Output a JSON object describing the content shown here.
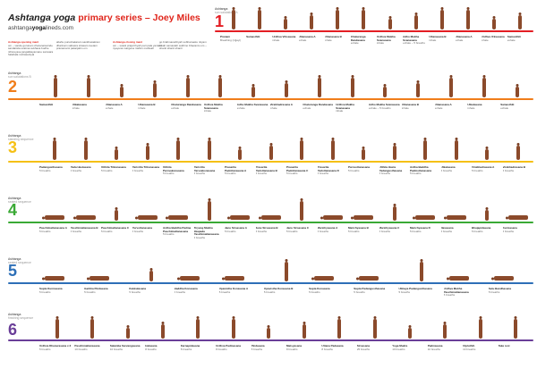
{
  "header": {
    "title": "Ashtanga yoga",
    "title_rest": "primary series – Joey Miles",
    "website_pre": "ashtanga",
    "website_bold": "yoga",
    "website_post": "lineds.com"
  },
  "intro": [
    {
      "h": "Ashtanga opening mant",
      "t": "om – vande gurunam charanaravinde sandarsita svatma sukhava bodhe nihsreyase jangalikayamane samsara halahala mohasantyai"
    },
    {
      "h": "",
      "t": "abahu purushakaram sankhacakrasi dharinam sahasra sirasam svetam pranamami patanjalim om"
    },
    {
      "h": "Ashtanga closing mant",
      "t": "om – svasti praja bhyah pari pala yantam nyayena margena mahim mahisah"
    },
    {
      "h": "",
      "t": "go brahmanebhyah subhamastu nityam lokah samastah sukhino bhavantu om – shanti shanti shanti"
    }
  ],
  "rows": [
    {
      "num": "1",
      "label": "Ashtanga",
      "sub": "sun salutations A",
      "color": "#e31e24",
      "captions": [
        {
          "n": "Pranam",
          "d": "Breathing (Ujjayi)"
        },
        {
          "n": "Samasthiti",
          "d": ""
        },
        {
          "n": "Urdhva Vrksasana",
          "d": "inhale"
        },
        {
          "n": "Uttanasana A",
          "d": "exhale"
        },
        {
          "n": "Uttanasana B",
          "d": "inhale"
        },
        {
          "n": "Chaturanga Dandasana",
          "d": "exhale"
        },
        {
          "n": "Urdhva Mukha Svanasana",
          "d": "inhale"
        },
        {
          "n": "Adho Mukha Svanasana",
          "d": "exhale – 5 breaths"
        },
        {
          "n": "Uttanasana B",
          "d": "inhale"
        },
        {
          "n": "Uttanasana A",
          "d": "exhale"
        },
        {
          "n": "Urdhva Vrksasana",
          "d": "inhale"
        },
        {
          "n": "Samasthiti",
          "d": "exhale"
        }
      ]
    },
    {
      "num": "2",
      "label": "Ashtanga",
      "sub": "sun salutations B",
      "color": "#f07d1a",
      "captions": [
        {
          "n": "Samasthiti",
          "d": ""
        },
        {
          "n": "Utkatasana",
          "d": "inhale"
        },
        {
          "n": "Uttanasana A",
          "d": "exhale"
        },
        {
          "n": "Uttanasana B",
          "d": "inhale"
        },
        {
          "n": "Chaturanga Dandasana",
          "d": "exhale"
        },
        {
          "n": "Urdhva Mukha Svanasana",
          "d": "inhale"
        },
        {
          "n": "Adho Mukha Svanasana",
          "d": "exhale"
        },
        {
          "n": "Virabhadrasana A",
          "d": "inhale"
        },
        {
          "n": "Chaturanga Dandasana",
          "d": "exhale"
        },
        {
          "n": "Urdhva Mukha Svanasana",
          "d": "inhale"
        },
        {
          "n": "Adho Mukha Svanasana",
          "d": "exhale – 5 breaths"
        },
        {
          "n": "Uttanasana B",
          "d": "inhale"
        },
        {
          "n": "Uttanasana A",
          "d": "exhale"
        },
        {
          "n": "Utkatasana",
          "d": "inhale"
        },
        {
          "n": "Samasthiti",
          "d": "exhale"
        }
      ]
    },
    {
      "num": "3",
      "label": "Ashtanga",
      "sub": "standing sequence",
      "color": "#f5c016",
      "captions": [
        {
          "n": "Padangusthasana",
          "d": "5 breaths"
        },
        {
          "n": "Pada Hastasana",
          "d": "5 breaths"
        },
        {
          "n": "Utthita Trikonasana",
          "d": "5 breaths"
        },
        {
          "n": "Parivrtta Trikonasana",
          "d": "5 breaths"
        },
        {
          "n": "Utthita Parsvakonasana",
          "d": "5 breaths"
        },
        {
          "n": "Parivrtta Parsvakonasana",
          "d": "5 breaths"
        },
        {
          "n": "Prasarita Padottanasana A",
          "d": "5 breaths"
        },
        {
          "n": "Prasarita Padottanasana B",
          "d": "5 breaths"
        },
        {
          "n": "Prasarita Padottanasana C",
          "d": "5 breaths"
        },
        {
          "n": "Prasarita Padottanasana D",
          "d": "5 breaths"
        },
        {
          "n": "Parsvottanasana",
          "d": "5 breaths"
        },
        {
          "n": "Utthita Hasta Padangusthasana",
          "d": "5 breaths"
        },
        {
          "n": "Ardha Baddha Padmottanasana",
          "d": "5 breaths"
        },
        {
          "n": "Utkatasana",
          "d": "5 breaths"
        },
        {
          "n": "Virabhadrasana A",
          "d": "5 breaths"
        },
        {
          "n": "Virabhadrasana B",
          "d": "5 breaths"
        }
      ]
    },
    {
      "num": "4",
      "label": "Ashtanga",
      "sub": "seated sequence",
      "color": "#3aa935",
      "captions": [
        {
          "n": "Paschimattanasana A",
          "d": "5 breaths"
        },
        {
          "n": "Paschimattanasana B",
          "d": "5 breaths"
        },
        {
          "n": "Paschimattanasana C",
          "d": "5 breaths"
        },
        {
          "n": "Purvottanasana",
          "d": "5 breaths"
        },
        {
          "n": "Ardha Baddha Padma Paschimattanasana",
          "d": "5 breaths"
        },
        {
          "n": "Tiryang Mukha Ekapada Paschimattanasana",
          "d": "5 breaths"
        },
        {
          "n": "Janu Sirsasana A",
          "d": "5 breaths"
        },
        {
          "n": "Janu Sirsasana B",
          "d": "5 breaths"
        },
        {
          "n": "Janu Sirsasana C",
          "d": "5 breaths"
        },
        {
          "n": "Marichyasana A",
          "d": "5 breaths"
        },
        {
          "n": "Marichyasana B",
          "d": "5 breaths"
        },
        {
          "n": "Marichyasana C",
          "d": "5 breaths"
        },
        {
          "n": "Marichyasana D",
          "d": "5 breaths"
        },
        {
          "n": "Navasana",
          "d": "5 breaths"
        },
        {
          "n": "Bhujapidasana",
          "d": "5 breaths"
        },
        {
          "n": "Kurmasana",
          "d": "5 breaths"
        }
      ]
    },
    {
      "num": "5",
      "label": "Ashtanga",
      "sub": "seated sequence",
      "color": "#2d6fb7",
      "captions": [
        {
          "n": "Supta Kurmasana",
          "d": "5 breaths"
        },
        {
          "n": "Garbha Pindasana",
          "d": "5 breaths"
        },
        {
          "n": "Kukkutasana",
          "d": "5 breaths"
        },
        {
          "n": "Baddha Konasana",
          "d": "5 breaths"
        },
        {
          "n": "Upavistha Konasana A",
          "d": "5 breaths"
        },
        {
          "n": "Upavistha Konasana B",
          "d": "5 breaths"
        },
        {
          "n": "Supta Konasana",
          "d": "5 breaths"
        },
        {
          "n": "Supta Padangusthasana",
          "d": "5 breaths"
        },
        {
          "n": "Ubhaya Padangusthasana",
          "d": "5 breaths"
        },
        {
          "n": "Urdhva Mukha Paschimattanasana",
          "d": "5 breaths"
        },
        {
          "n": "Setu Bandhasana",
          "d": "5 breaths"
        }
      ]
    },
    {
      "num": "6",
      "label": "Ashtanga",
      "sub": "finishing sequence",
      "color": "#6a3e98",
      "captions": [
        {
          "n": "Urdhva Dhanurasana x 3",
          "d": "5 breaths"
        },
        {
          "n": "Paschimattanasana",
          "d": "10 breaths"
        },
        {
          "n": "Salamba Sarvangasana",
          "d": "10 breaths"
        },
        {
          "n": "Halasana",
          "d": "8 breaths"
        },
        {
          "n": "Karnapidasana",
          "d": "8 breaths"
        },
        {
          "n": "Urdhva Padmasana",
          "d": "8 breaths"
        },
        {
          "n": "Pindasana",
          "d": "8 breaths"
        },
        {
          "n": "Matsyasana",
          "d": "8 breaths"
        },
        {
          "n": "Uttana Padasana",
          "d": "8 breaths"
        },
        {
          "n": "Sirsasana",
          "d": "25 breaths"
        },
        {
          "n": "Yoga Mudra",
          "d": "10 breaths"
        },
        {
          "n": "Padmasana",
          "d": "10 breaths"
        },
        {
          "n": "Utpluthih",
          "d": "10 breaths"
        },
        {
          "n": "Take rest",
          "d": ""
        }
      ]
    }
  ]
}
